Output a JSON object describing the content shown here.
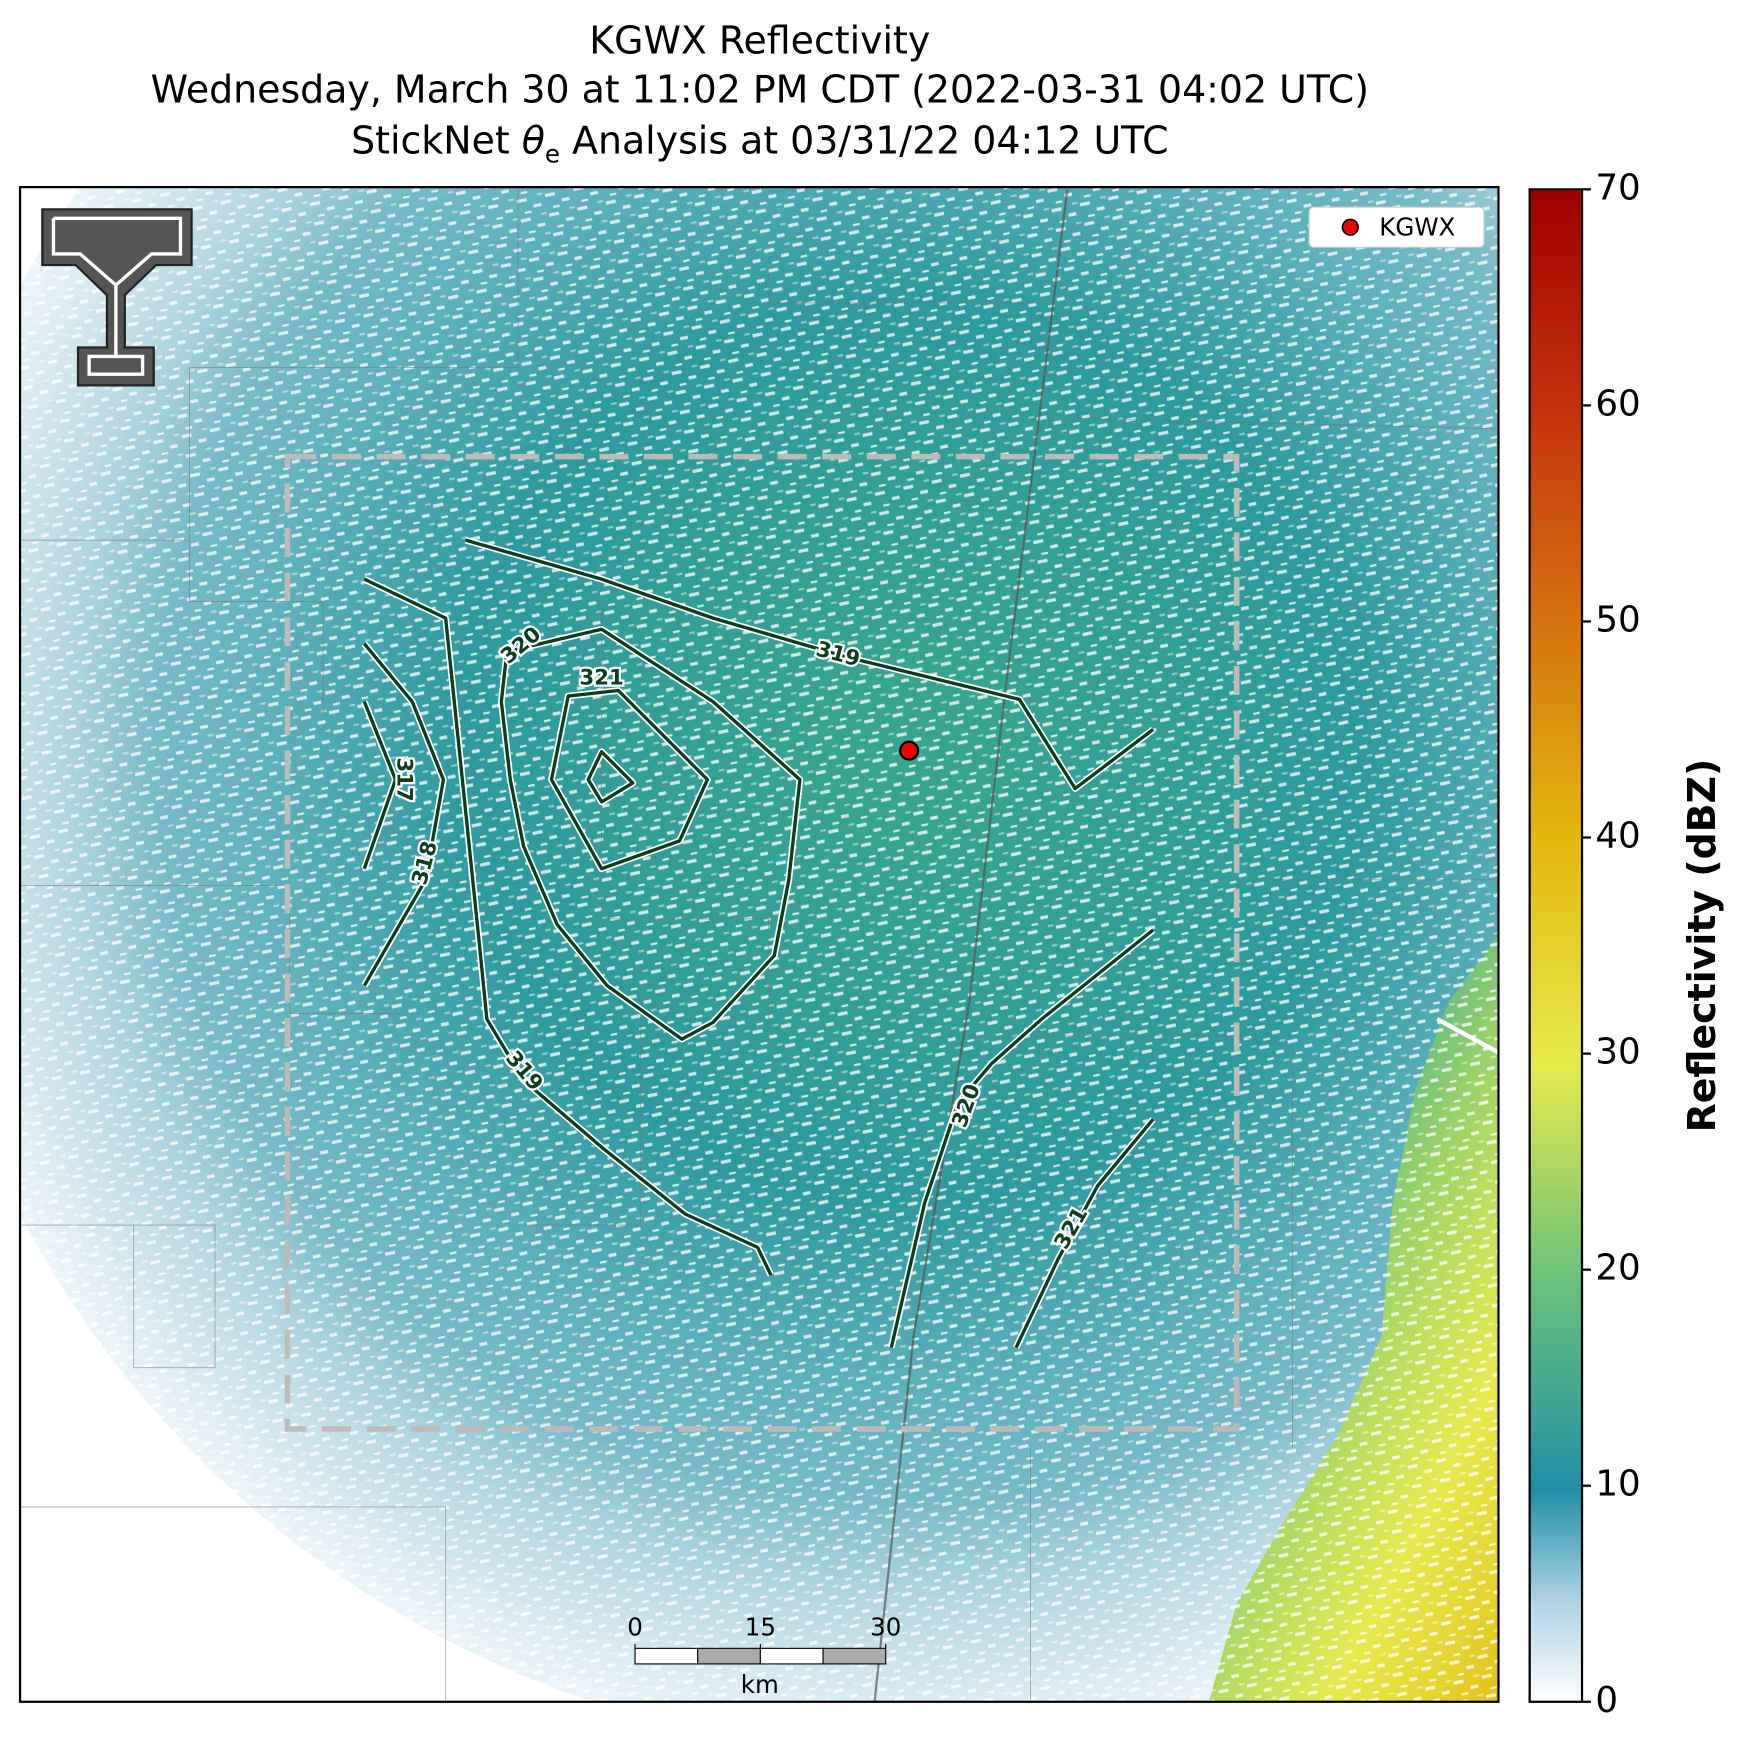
{
  "title": {
    "line1": "KGWX Reflectivity",
    "line2": "Wednesday, March 30 at 11:02 PM CDT (2022-03-31 04:02 UTC)",
    "line3": {
      "before": "StickNet ",
      "symbol": "θ",
      "subscript": "e",
      "after": " Analysis at 03/31/22 04:12 UTC"
    }
  },
  "legend": {
    "label": "KGWX"
  },
  "colorbar": {
    "label": "Reflectivity (dBZ)",
    "lim": [
      0,
      70
    ],
    "ticks": [
      0,
      10,
      20,
      30,
      40,
      50,
      60,
      70
    ]
  },
  "contour_labels": [
    319,
    320,
    321,
    317,
    318,
    319,
    320,
    321
  ],
  "scale_bar": {
    "ticks": [
      0,
      15,
      30
    ],
    "unit": "km"
  }
}
